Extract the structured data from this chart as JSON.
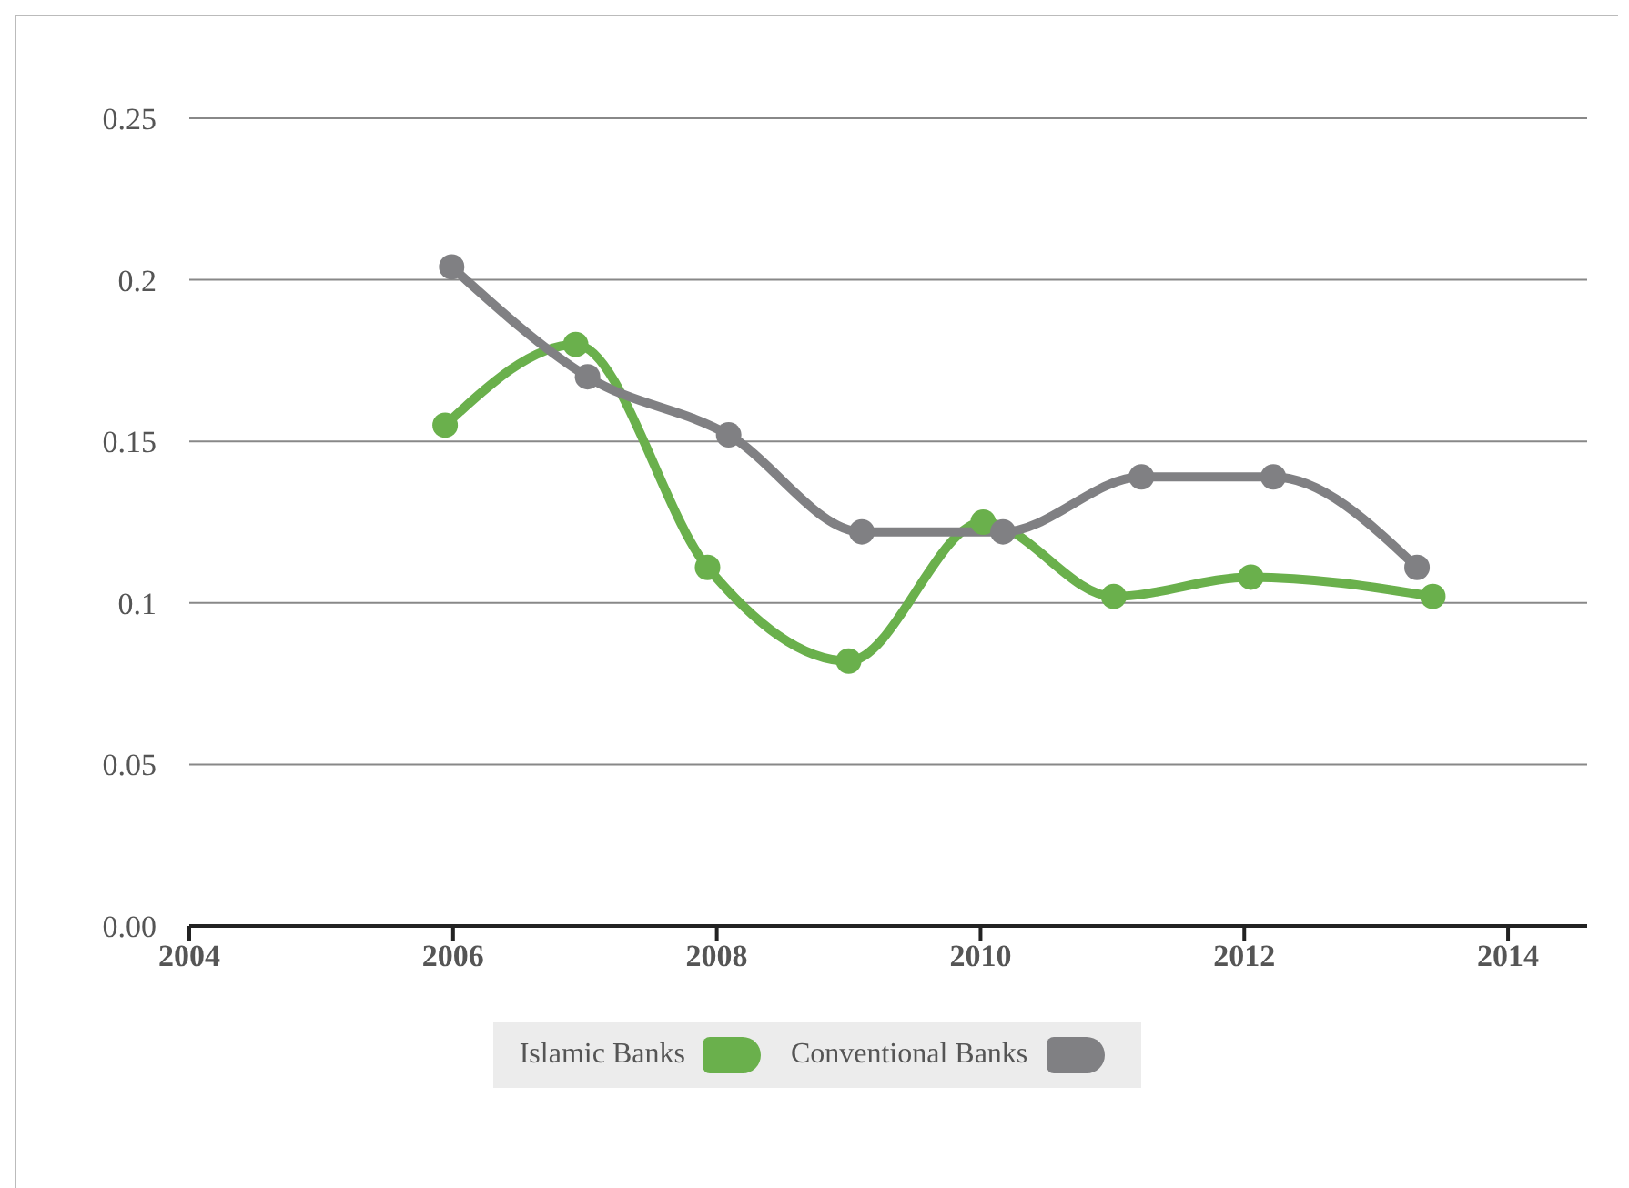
{
  "chart_data": {
    "type": "line",
    "series": [
      {
        "name": "Islamic Banks",
        "color": "#6ab04c",
        "x": [
          2005.94,
          2006.93,
          2007.93,
          2009.0,
          2010.02,
          2011.01,
          2012.05,
          2013.43
        ],
        "values": [
          0.155,
          0.18,
          0.111,
          0.082,
          0.125,
          0.102,
          0.108,
          0.102
        ]
      },
      {
        "name": "Conventional Banks",
        "color": "#808083",
        "x": [
          2005.99,
          2007.02,
          2008.09,
          2009.1,
          2010.17,
          2011.22,
          2012.22,
          2013.31
        ],
        "values": [
          0.204,
          0.17,
          0.152,
          0.122,
          0.122,
          0.139,
          0.139,
          0.111
        ]
      }
    ],
    "xlim": [
      2004,
      2014.6
    ],
    "xticks": [
      2004,
      2006,
      2008,
      2010,
      2012,
      2014
    ],
    "ylim": [
      0,
      0.25
    ],
    "yticks": [
      {
        "value": 0,
        "label": "0.00"
      },
      0.05,
      0.1,
      0.15,
      0.2,
      0.25
    ],
    "grid": "y",
    "legend": "bottom",
    "marker": "circle",
    "line_style": "solid"
  }
}
